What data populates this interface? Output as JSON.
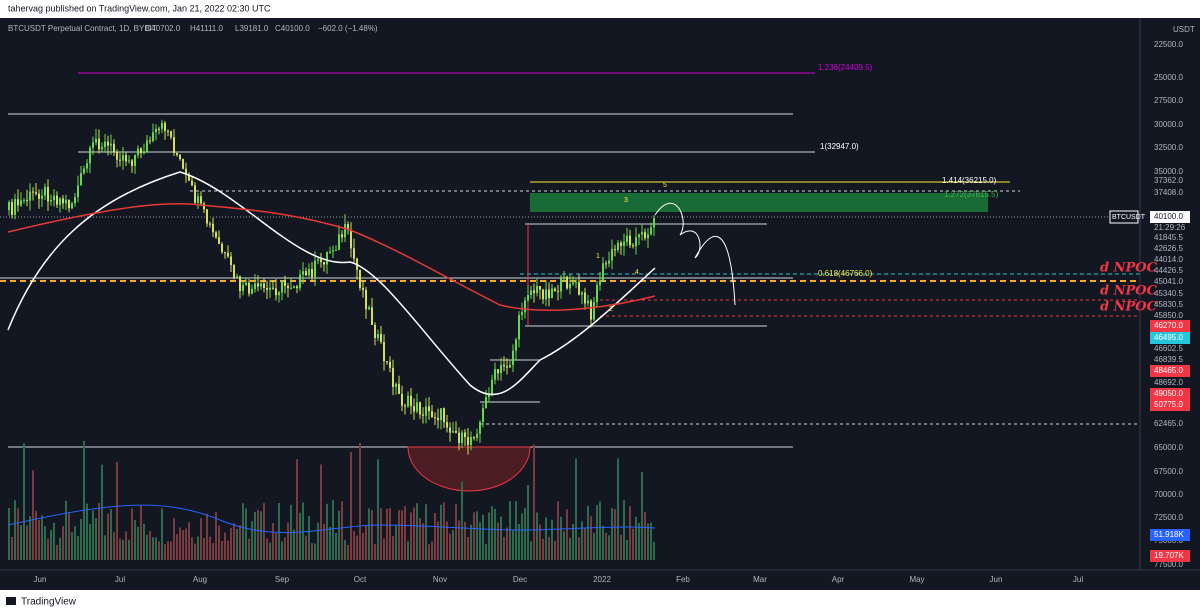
{
  "header": {
    "publisher": "tahervag published on TradingView.com, Jan 21, 2022 02:30 UTC"
  },
  "legend": {
    "symbol": "BTCUSDT Perpetual Contract, 1D, BYBIT",
    "open": "O40702.0",
    "high": "H41111.0",
    "low": "L39181.0",
    "close": "C40100.0",
    "change": "−602.0 (−1.48%)"
  },
  "price_axis": {
    "currency": "USDT",
    "labels": [
      "22500.0",
      "25000.0",
      "27500.0",
      "30000.0",
      "32500.0",
      "35000.0",
      "37362.0",
      "37408.0",
      "41845.5",
      "42626.5",
      "44014.0",
      "44426.5",
      "45041.0",
      "45340.5",
      "45830.5",
      "45850.0",
      "46602.5",
      "46839.5",
      "48692.0",
      "62465.0",
      "65000.0",
      "67500.0",
      "70000.0",
      "72500.0",
      "75000.0",
      "77500.0"
    ],
    "countdown": "21:29:26",
    "badges": [
      {
        "label": "40100.0",
        "color": "#ffffff"
      },
      {
        "label": "46270.0",
        "color": "#f23645"
      },
      {
        "label": "46495.0",
        "color": "#26c6da"
      },
      {
        "label": "48465.0",
        "color": "#f23645"
      },
      {
        "label": "49050.0",
        "color": "#f23645"
      },
      {
        "label": "50775.0",
        "color": "#f23645"
      },
      {
        "label": "51.918K",
        "color": "#2962ff"
      },
      {
        "label": "19.707K",
        "color": "#f23645"
      }
    ]
  },
  "symbol_tag": "BTCUSDT",
  "time_axis": [
    "Jun",
    "Jul",
    "Aug",
    "Sep",
    "Oct",
    "Nov",
    "Dec",
    "2022",
    "Feb",
    "Mar",
    "Apr",
    "May",
    "Jun",
    "Jul"
  ],
  "annotations": {
    "fib": [
      {
        "label": "1.236(24409.5)",
        "color": "#d500d5"
      },
      {
        "label": "1(32947.0)",
        "color": "#ffffff"
      },
      {
        "label": "1.414(36215.0)",
        "color": "#ffffff"
      },
      {
        "label": "1.272(37815.5)",
        "color": "#4caf50"
      },
      {
        "label": "0.618(46766.0)",
        "color": "#ffeb3b"
      }
    ],
    "npoc": [
      "d NPOC",
      "d NPOC",
      "d NPOC"
    ],
    "waves": [
      "5",
      "3",
      "1",
      "4",
      "2"
    ]
  },
  "footer": {
    "brand": "TradingView"
  }
}
